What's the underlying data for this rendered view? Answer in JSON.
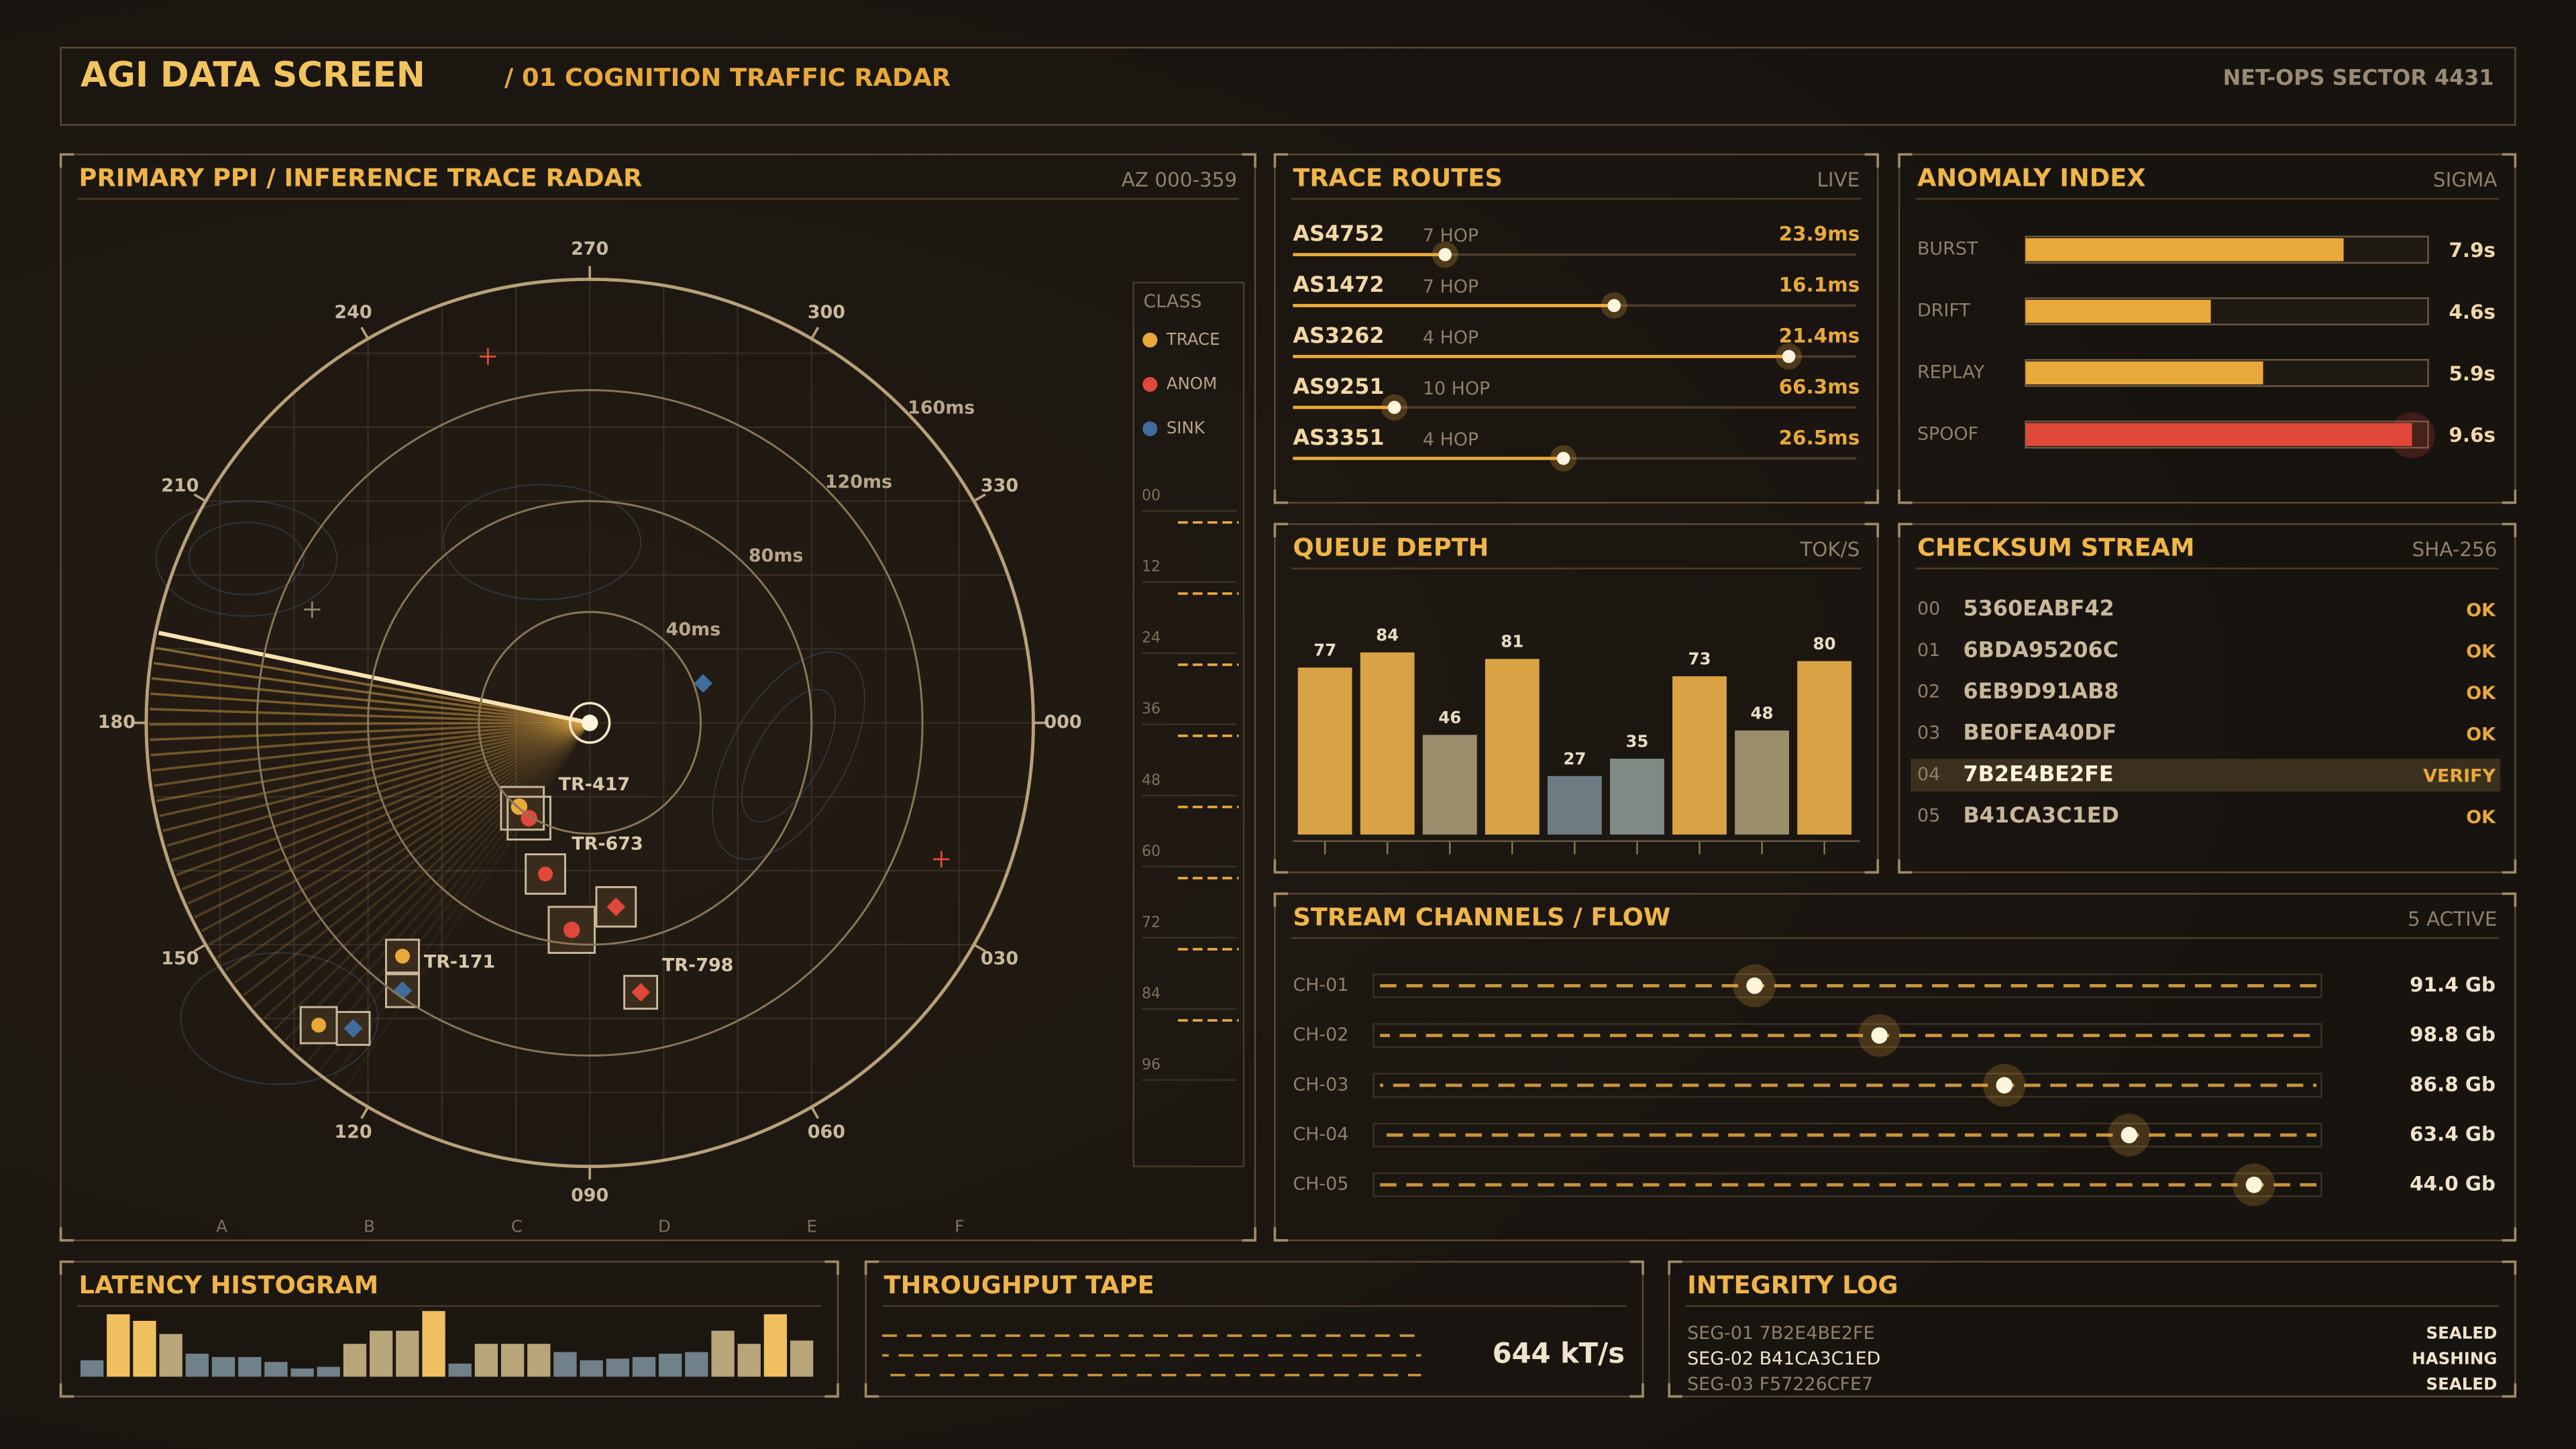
{
  "header": {
    "title": "AGI DATA SCREEN",
    "subtitle": "/ 01 COGNITION TRAFFIC RADAR",
    "sector": "NET-OPS SECTOR 4431"
  },
  "radar": {
    "title": "PRIMARY PPI / INFERENCE TRACE RADAR",
    "tag": "AZ 000-359",
    "bearings": [
      {
        "value": 0,
        "label": "000"
      },
      {
        "value": 30,
        "label": "030"
      },
      {
        "value": 60,
        "label": "060"
      },
      {
        "value": 90,
        "label": "090"
      },
      120,
      150,
      180,
      210,
      240,
      270,
      300,
      330
    ],
    "rlim": [
      0,
      160
    ],
    "rings": [
      {
        "value": 40,
        "label": "40ms"
      },
      {
        "value": 80,
        "label": "80ms"
      },
      {
        "value": 120,
        "label": "120ms"
      },
      {
        "value": 160,
        "label": "160ms"
      }
    ],
    "legend": {
      "title": "CLASS",
      "items": [
        {
          "name": "TRACE",
          "color": "#e8a93a"
        },
        {
          "name": "ANOM",
          "color": "#e0483a"
        },
        {
          "name": "SINK",
          "color": "#3f6e9e"
        }
      ]
    },
    "scale": [
      "00",
      "12",
      "24",
      "36",
      "48",
      "60",
      "72",
      "84",
      "96"
    ],
    "columns": [
      "A",
      "B",
      "C",
      "D",
      "E",
      "F"
    ],
    "targets": [
      "TR-417",
      "TR-673",
      "TR-171",
      "TR-798"
    ]
  },
  "trace_routes": {
    "title": "TRACE ROUTES",
    "tag": "LIVE",
    "rows": [
      {
        "asn": "AS4752",
        "hops": "7 HOP",
        "latency": "23.9ms",
        "load": 0.27
      },
      {
        "asn": "AS1472",
        "hops": "7 HOP",
        "latency": "16.1ms",
        "load": 0.57
      },
      {
        "asn": "AS3262",
        "hops": "4 HOP",
        "latency": "21.4ms",
        "load": 0.88
      },
      {
        "asn": "AS9251",
        "hops": "10 HOP",
        "latency": "66.3ms",
        "load": 0.18
      },
      {
        "asn": "AS3351",
        "hops": "4 HOP",
        "latency": "26.5ms",
        "load": 0.48
      }
    ]
  },
  "anomaly": {
    "title": "ANOMALY INDEX",
    "tag": "SIGMA",
    "max": 10,
    "rows": [
      {
        "name": "BURST",
        "value": 7.9,
        "label": "7.9s",
        "color": "#e8a93a"
      },
      {
        "name": "DRIFT",
        "value": 4.6,
        "label": "4.6s",
        "color": "#e8a93a"
      },
      {
        "name": "REPLAY",
        "value": 5.9,
        "label": "5.9s",
        "color": "#e8a93a"
      },
      {
        "name": "SPOOF",
        "value": 9.6,
        "label": "9.6s",
        "color": "#e0483a"
      }
    ]
  },
  "queue_depth": {
    "title": "QUEUE DEPTH",
    "tag": "TOK/S",
    "values": [
      77,
      84,
      46,
      81,
      27,
      35,
      73,
      48,
      80
    ],
    "colors": [
      "#d9a244",
      "#d9a244",
      "#9a8e6c",
      "#d9a244",
      "#6c7c82",
      "#7f8a84",
      "#d9a244",
      "#9a8e6c",
      "#d9a244"
    ]
  },
  "checksum": {
    "title": "CHECKSUM STREAM",
    "tag": "SHA-256",
    "highlight": 4,
    "rows": [
      {
        "index": "00",
        "hash": "5360EABF42",
        "status": "OK"
      },
      {
        "index": "01",
        "hash": "6BDA95206C",
        "status": "OK"
      },
      {
        "index": "02",
        "hash": "6EB9D91AB8",
        "status": "OK"
      },
      {
        "index": "03",
        "hash": "BE0FEA40DF",
        "status": "OK"
      },
      {
        "index": "04",
        "hash": "7B2E4BE2FE",
        "status": "VERIFY"
      },
      {
        "index": "05",
        "hash": "B41CA3C1ED",
        "status": "OK"
      }
    ]
  },
  "channels": {
    "title": "STREAM CHANNELS / FLOW",
    "tag": "5 ACTIVE",
    "rows": [
      {
        "name": "CH-01",
        "rate": "91.4 Gb"
      },
      {
        "name": "CH-02",
        "rate": "98.8 Gb"
      },
      {
        "name": "CH-03",
        "rate": "86.8 Gb"
      },
      {
        "name": "CH-04",
        "rate": "63.4 Gb"
      },
      {
        "name": "CH-05",
        "rate": "44.0 Gb"
      }
    ]
  },
  "latency_histogram": {
    "title": "LATENCY HISTOGRAM",
    "values": [
      10,
      38,
      34,
      26,
      14,
      12,
      12,
      9,
      5,
      6,
      20,
      28,
      28,
      40,
      8,
      20,
      20,
      20,
      15,
      10,
      11,
      12,
      14,
      15,
      28,
      20,
      38,
      22
    ]
  },
  "throughput": {
    "title": "THROUGHPUT TAPE",
    "rate": "644 kT/s"
  },
  "integrity_log": {
    "title": "INTEGRITY LOG",
    "rows": [
      {
        "entry": "SEG-01 7B2E4BE2FE",
        "status": "SEALED"
      },
      {
        "entry": "SEG-02 B41CA3C1ED",
        "status": "HASHING"
      },
      {
        "entry": "SEG-03 F57226CFE7",
        "status": "SEALED"
      }
    ]
  }
}
